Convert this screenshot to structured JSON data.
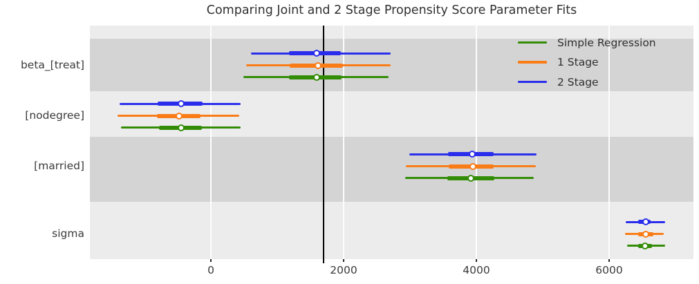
{
  "chart_data": {
    "type": "forest",
    "title": "Comparing Joint and 2 Stage Propensity Score Parameter Fits",
    "xlabel": "",
    "ylabel": "",
    "xlim": [
      -1823,
      7271
    ],
    "x_ticks": [
      0,
      2000,
      4000,
      6000
    ],
    "reference_line_x": 1700,
    "grid": true,
    "legend_position": "upper right",
    "parameters": [
      "beta_[treat]",
      "[nodegree]",
      "[married]",
      "sigma"
    ],
    "legend_items": [
      "Simple Regression",
      "1 Stage",
      "2 Stage"
    ],
    "series": [
      {
        "name": "2 Stage",
        "color": "#2a2eec",
        "points": [
          1590,
          -450,
          3940,
          6555
        ],
        "thick_intervals": [
          [
            1180,
            1955
          ],
          [
            -800,
            -125
          ],
          [
            3575,
            4260
          ],
          [
            6435,
            6630
          ]
        ],
        "thin_intervals": [
          [
            600,
            2710
          ],
          [
            -1375,
            450
          ],
          [
            2990,
            4905
          ],
          [
            6250,
            6840
          ]
        ]
      },
      {
        "name": "1 Stage",
        "color": "#fa7c17",
        "points": [
          1615,
          -475,
          3950,
          6550
        ],
        "thick_intervals": [
          [
            1190,
            1985
          ],
          [
            -815,
            -155
          ],
          [
            3585,
            4265
          ],
          [
            6440,
            6665
          ]
        ],
        "thin_intervals": [
          [
            530,
            2710
          ],
          [
            -1405,
            430
          ],
          [
            2935,
            4895
          ],
          [
            6240,
            6825
          ]
        ]
      },
      {
        "name": "Simple Regression",
        "color": "#328c06",
        "points": [
          1590,
          -450,
          3915,
          6545
        ],
        "thick_intervals": [
          [
            1180,
            1970
          ],
          [
            -780,
            -140
          ],
          [
            3565,
            4270
          ],
          [
            6435,
            6650
          ]
        ],
        "thin_intervals": [
          [
            490,
            2680
          ],
          [
            -1355,
            450
          ],
          [
            2925,
            4860
          ],
          [
            6275,
            6840
          ]
        ]
      }
    ],
    "style": {
      "band_light": "#ececec",
      "band_dark": "#d4d4d4",
      "gridline_color": "#fdfdfd",
      "reference_line_color": "#000000",
      "marker_face": "#ffffff",
      "text_color": "#262626"
    }
  }
}
